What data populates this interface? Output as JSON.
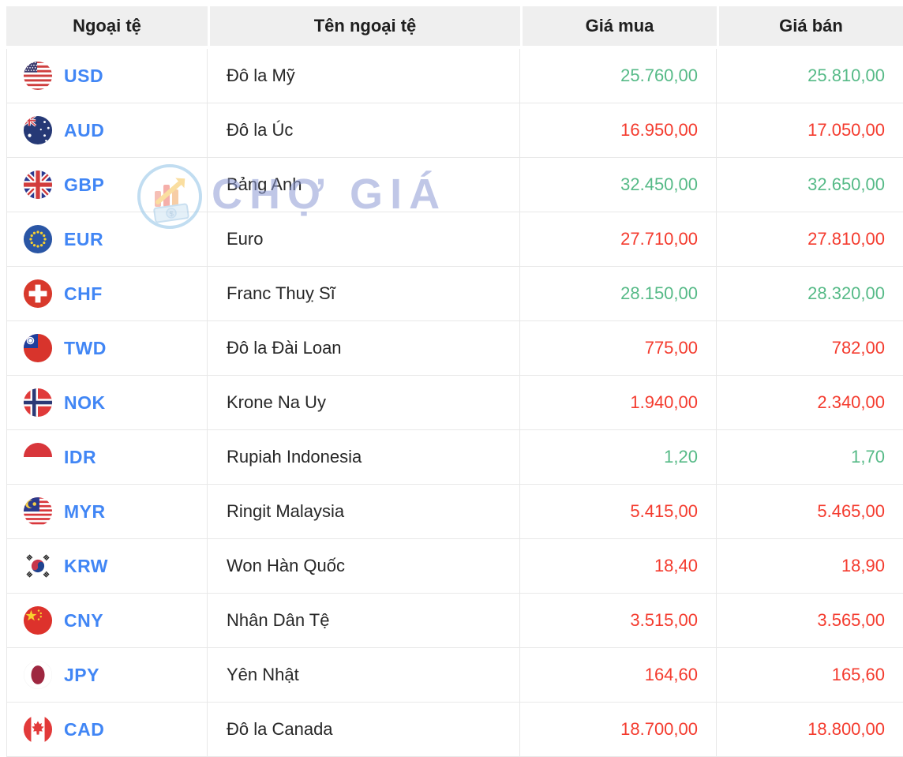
{
  "header": {
    "columns": [
      "Ngoại tệ",
      "Tên ngoại tệ",
      "Giá mua",
      "Giá bán"
    ]
  },
  "watermark": {
    "text": "CHỢ GIÁ",
    "logo_icon": "cho-gia-logo-icon"
  },
  "colors": {
    "up": "#56ba87",
    "down": "#f43b2e",
    "code_blue": "#4186f5",
    "header_bg": "#efefef",
    "row_border": "#e8e8e8"
  },
  "rows": [
    {
      "code": "USD",
      "flag_icon": "flag-usd-icon",
      "name": "Đô la Mỹ",
      "buy": "25.760,00",
      "sell": "25.810,00",
      "trend": "up"
    },
    {
      "code": "AUD",
      "flag_icon": "flag-aud-icon",
      "name": "Đô la Úc",
      "buy": "16.950,00",
      "sell": "17.050,00",
      "trend": "down"
    },
    {
      "code": "GBP",
      "flag_icon": "flag-gbp-icon",
      "name": "Bảng Anh",
      "buy": "32.450,00",
      "sell": "32.650,00",
      "trend": "up"
    },
    {
      "code": "EUR",
      "flag_icon": "flag-eur-icon",
      "name": "Euro",
      "buy": "27.710,00",
      "sell": "27.810,00",
      "trend": "down"
    },
    {
      "code": "CHF",
      "flag_icon": "flag-chf-icon",
      "name": "Franc Thuỵ Sĩ",
      "buy": "28.150,00",
      "sell": "28.320,00",
      "trend": "up"
    },
    {
      "code": "TWD",
      "flag_icon": "flag-twd-icon",
      "name": "Đô la Đài Loan",
      "buy": "775,00",
      "sell": "782,00",
      "trend": "down"
    },
    {
      "code": "NOK",
      "flag_icon": "flag-nok-icon",
      "name": "Krone Na Uy",
      "buy": "1.940,00",
      "sell": "2.340,00",
      "trend": "down"
    },
    {
      "code": "IDR",
      "flag_icon": "flag-idr-icon",
      "name": "Rupiah Indonesia",
      "buy": "1,20",
      "sell": "1,70",
      "trend": "up"
    },
    {
      "code": "MYR",
      "flag_icon": "flag-myr-icon",
      "name": "Ringit Malaysia",
      "buy": "5.415,00",
      "sell": "5.465,00",
      "trend": "down"
    },
    {
      "code": "KRW",
      "flag_icon": "flag-krw-icon",
      "name": "Won Hàn Quốc",
      "buy": "18,40",
      "sell": "18,90",
      "trend": "down"
    },
    {
      "code": "CNY",
      "flag_icon": "flag-cny-icon",
      "name": "Nhân Dân Tệ",
      "buy": "3.515,00",
      "sell": "3.565,00",
      "trend": "down"
    },
    {
      "code": "JPY",
      "flag_icon": "flag-jpy-icon",
      "name": "Yên Nhật",
      "buy": "164,60",
      "sell": "165,60",
      "trend": "down"
    },
    {
      "code": "CAD",
      "flag_icon": "flag-cad-icon",
      "name": "Đô la Canada",
      "buy": "18.700,00",
      "sell": "18.800,00",
      "trend": "down"
    }
  ]
}
